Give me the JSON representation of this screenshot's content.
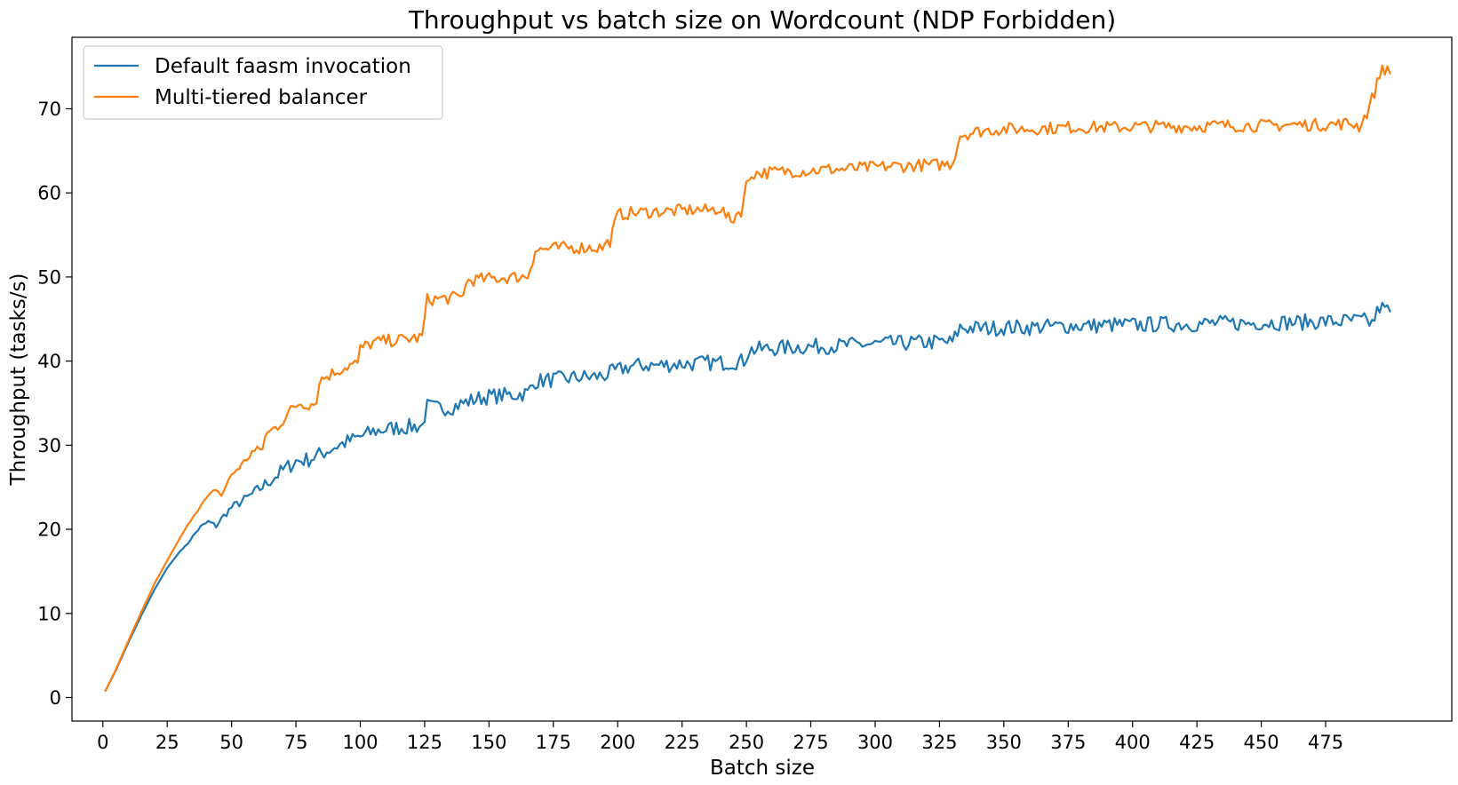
{
  "chart_data": {
    "type": "line",
    "title": "Throughput vs batch size on Wordcount (NDP Forbidden)",
    "xlabel": "Batch size",
    "ylabel": "Throughput (tasks/s)",
    "xlim": [
      -12,
      524
    ],
    "ylim": [
      -2.8,
      78.5
    ],
    "xticks": [
      0,
      25,
      50,
      75,
      100,
      125,
      150,
      175,
      200,
      225,
      250,
      275,
      300,
      325,
      350,
      375,
      400,
      425,
      450,
      475
    ],
    "yticks": [
      0,
      10,
      20,
      30,
      40,
      50,
      60,
      70
    ],
    "legend": "top-left",
    "grid": false,
    "series": [
      {
        "name": "Default faasm invocation",
        "color": "#1f77b4",
        "points": [
          [
            1,
            0.8
          ],
          [
            5,
            3.2
          ],
          [
            10,
            6.6
          ],
          [
            15,
            9.8
          ],
          [
            20,
            12.8
          ],
          [
            25,
            15.4
          ],
          [
            30,
            17.4
          ],
          [
            33,
            18.3
          ],
          [
            35,
            19.2
          ],
          [
            38,
            20.3
          ],
          [
            41,
            20.9
          ],
          [
            44,
            20.4
          ],
          [
            47,
            21.6
          ],
          [
            50,
            22.6
          ],
          [
            55,
            23.5
          ],
          [
            60,
            24.6
          ],
          [
            65,
            25.8
          ],
          [
            70,
            27.0
          ],
          [
            75,
            28.1
          ],
          [
            80,
            28.3
          ],
          [
            85,
            29.0
          ],
          [
            90,
            29.8
          ],
          [
            95,
            30.4
          ],
          [
            100,
            31.0
          ],
          [
            105,
            31.6
          ],
          [
            110,
            31.9
          ],
          [
            115,
            32.1
          ],
          [
            120,
            32.2
          ],
          [
            124,
            32.3
          ],
          [
            126,
            34.6
          ],
          [
            130,
            34.4
          ],
          [
            135,
            34.5
          ],
          [
            140,
            35.0
          ],
          [
            145,
            35.5
          ],
          [
            150,
            35.8
          ],
          [
            155,
            35.9
          ],
          [
            160,
            36.0
          ],
          [
            165,
            36.2
          ],
          [
            168,
            37.6
          ],
          [
            175,
            37.8
          ],
          [
            180,
            37.9
          ],
          [
            185,
            38.1
          ],
          [
            190,
            38.1
          ],
          [
            195,
            38.3
          ],
          [
            200,
            38.9
          ],
          [
            205,
            39.4
          ],
          [
            210,
            39.5
          ],
          [
            215,
            39.5
          ],
          [
            220,
            39.6
          ],
          [
            225,
            39.7
          ],
          [
            230,
            39.7
          ],
          [
            235,
            39.8
          ],
          [
            240,
            39.8
          ],
          [
            245,
            39.9
          ],
          [
            249,
            40.0
          ],
          [
            251,
            41.3
          ],
          [
            255,
            41.4
          ],
          [
            260,
            41.5
          ],
          [
            265,
            41.6
          ],
          [
            270,
            41.7
          ],
          [
            275,
            41.7
          ],
          [
            280,
            41.8
          ],
          [
            285,
            41.8
          ],
          [
            290,
            41.9
          ],
          [
            295,
            42.0
          ],
          [
            300,
            42.0
          ],
          [
            305,
            42.1
          ],
          [
            310,
            42.1
          ],
          [
            315,
            42.2
          ],
          [
            320,
            42.2
          ],
          [
            325,
            42.3
          ],
          [
            330,
            42.2
          ],
          [
            333,
            44.0
          ],
          [
            340,
            43.9
          ],
          [
            345,
            43.9
          ],
          [
            350,
            44.0
          ],
          [
            355,
            44.0
          ],
          [
            360,
            44.0
          ],
          [
            365,
            44.1
          ],
          [
            370,
            44.1
          ],
          [
            375,
            44.2
          ],
          [
            380,
            44.2
          ],
          [
            385,
            44.2
          ],
          [
            390,
            44.3
          ],
          [
            395,
            44.3
          ],
          [
            400,
            44.3
          ],
          [
            405,
            44.3
          ],
          [
            410,
            44.4
          ],
          [
            415,
            44.4
          ],
          [
            420,
            44.4
          ],
          [
            425,
            44.4
          ],
          [
            430,
            44.5
          ],
          [
            435,
            44.5
          ],
          [
            440,
            44.5
          ],
          [
            445,
            44.5
          ],
          [
            450,
            44.6
          ],
          [
            455,
            44.6
          ],
          [
            460,
            44.6
          ],
          [
            465,
            44.6
          ],
          [
            470,
            44.7
          ],
          [
            475,
            44.7
          ],
          [
            480,
            44.7
          ],
          [
            485,
            44.8
          ],
          [
            490,
            44.8
          ],
          [
            493,
            44.5
          ],
          [
            496,
            46.4
          ],
          [
            500,
            45.9
          ]
        ]
      },
      {
        "name": "Multi-tiered balancer",
        "color": "#ff7f0e",
        "points": [
          [
            1,
            0.8
          ],
          [
            5,
            3.3
          ],
          [
            10,
            6.8
          ],
          [
            15,
            10.2
          ],
          [
            20,
            13.5
          ],
          [
            25,
            16.3
          ],
          [
            30,
            19.0
          ],
          [
            35,
            21.5
          ],
          [
            40,
            23.6
          ],
          [
            44,
            24.8
          ],
          [
            46,
            24.0
          ],
          [
            50,
            26.5
          ],
          [
            55,
            28.0
          ],
          [
            58,
            29.2
          ],
          [
            62,
            29.5
          ],
          [
            63,
            31.2
          ],
          [
            68,
            32.3
          ],
          [
            72,
            33.8
          ],
          [
            76,
            35.0
          ],
          [
            80,
            34.9
          ],
          [
            83,
            35.0
          ],
          [
            84,
            37.7
          ],
          [
            90,
            38.7
          ],
          [
            95,
            39.4
          ],
          [
            99,
            39.8
          ],
          [
            100,
            41.5
          ],
          [
            105,
            42.2
          ],
          [
            110,
            42.4
          ],
          [
            115,
            42.5
          ],
          [
            120,
            42.7
          ],
          [
            124,
            42.8
          ],
          [
            126,
            47.3
          ],
          [
            130,
            47.4
          ],
          [
            135,
            47.5
          ],
          [
            139,
            47.6
          ],
          [
            142,
            49.6
          ],
          [
            146,
            49.7
          ],
          [
            150,
            49.8
          ],
          [
            155,
            49.9
          ],
          [
            160,
            50.0
          ],
          [
            165,
            50.1
          ],
          [
            168,
            53.2
          ],
          [
            175,
            53.4
          ],
          [
            180,
            53.5
          ],
          [
            185,
            53.5
          ],
          [
            190,
            53.5
          ],
          [
            194,
            53.5
          ],
          [
            197,
            54.3
          ],
          [
            200,
            57.4
          ],
          [
            205,
            57.6
          ],
          [
            210,
            57.7
          ],
          [
            215,
            57.8
          ],
          [
            220,
            57.8
          ],
          [
            225,
            57.9
          ],
          [
            230,
            58.0
          ],
          [
            235,
            57.9
          ],
          [
            240,
            58.2
          ],
          [
            242,
            57.3
          ],
          [
            244,
            56.5
          ],
          [
            246,
            57.5
          ],
          [
            248,
            57.9
          ],
          [
            250,
            60.9
          ],
          [
            252,
            62.3
          ],
          [
            257,
            62.4
          ],
          [
            262,
            62.5
          ],
          [
            267,
            62.6
          ],
          [
            272,
            62.6
          ],
          [
            277,
            62.7
          ],
          [
            282,
            62.8
          ],
          [
            287,
            62.8
          ],
          [
            292,
            62.9
          ],
          [
            297,
            63.0
          ],
          [
            302,
            63.1
          ],
          [
            307,
            63.2
          ],
          [
            312,
            63.2
          ],
          [
            317,
            63.3
          ],
          [
            322,
            63.3
          ],
          [
            327,
            63.4
          ],
          [
            330,
            63.5
          ],
          [
            333,
            66.9
          ],
          [
            340,
            67.3
          ],
          [
            345,
            67.5
          ],
          [
            350,
            67.6
          ],
          [
            355,
            67.6
          ],
          [
            360,
            67.6
          ],
          [
            365,
            67.7
          ],
          [
            370,
            67.7
          ],
          [
            375,
            67.8
          ],
          [
            380,
            67.8
          ],
          [
            385,
            67.8
          ],
          [
            390,
            67.8
          ],
          [
            395,
            67.8
          ],
          [
            400,
            67.9
          ],
          [
            405,
            67.9
          ],
          [
            410,
            67.9
          ],
          [
            415,
            67.9
          ],
          [
            420,
            67.9
          ],
          [
            425,
            67.9
          ],
          [
            430,
            68.0
          ],
          [
            435,
            68.0
          ],
          [
            440,
            68.0
          ],
          [
            445,
            68.0
          ],
          [
            450,
            68.0
          ],
          [
            455,
            68.0
          ],
          [
            460,
            68.1
          ],
          [
            465,
            68.1
          ],
          [
            470,
            68.1
          ],
          [
            475,
            68.1
          ],
          [
            480,
            68.2
          ],
          [
            485,
            68.3
          ],
          [
            488,
            67.9
          ],
          [
            491,
            69.5
          ],
          [
            494,
            72.0
          ],
          [
            497,
            75.0
          ],
          [
            500,
            74.2
          ]
        ]
      }
    ]
  }
}
